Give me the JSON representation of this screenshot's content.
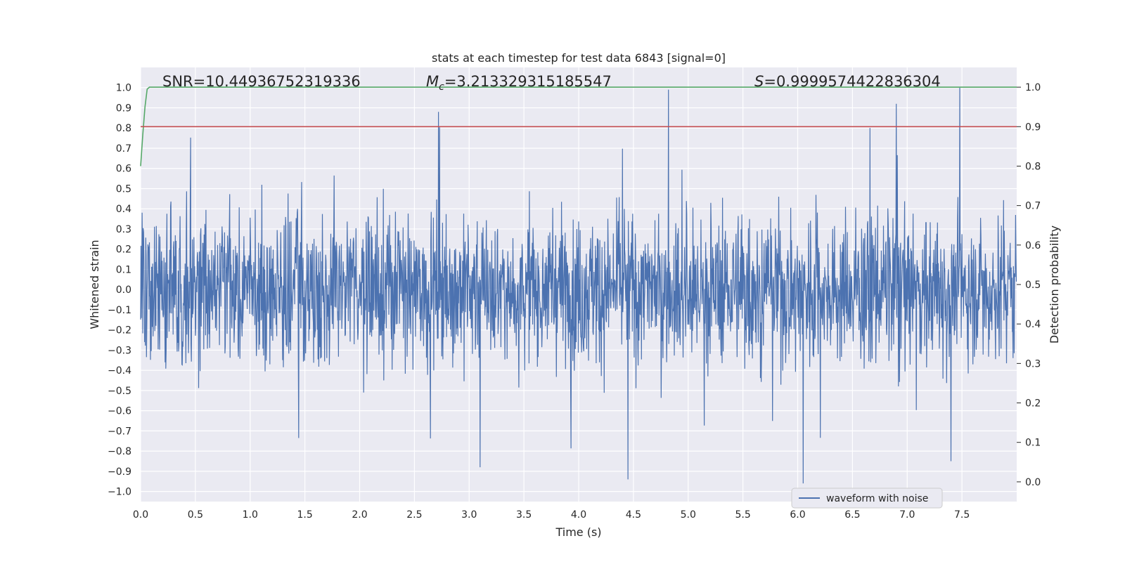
{
  "chart_data": {
    "type": "line",
    "title": "stats at each timestep for test data 6843 [signal=0]",
    "xlabel": "Time (s)",
    "ylabel_left": "Whitened strain",
    "ylabel_right": "Detection probability",
    "xlim": [
      0.0,
      8.0
    ],
    "ylim_left": [
      -1.05,
      1.1
    ],
    "ylim_right": [
      -0.05,
      1.05
    ],
    "x_ticks": [
      "0.0",
      "0.5",
      "1.0",
      "1.5",
      "2.0",
      "2.5",
      "3.0",
      "3.5",
      "4.0",
      "4.5",
      "5.0",
      "5.5",
      "6.0",
      "6.5",
      "7.0",
      "7.5"
    ],
    "y_ticks_left": [
      "1.0",
      "0.9",
      "0.8",
      "0.7",
      "0.6",
      "0.5",
      "0.4",
      "0.3",
      "0.2",
      "0.1",
      "0.0",
      "-0.1",
      "-0.2",
      "-0.3",
      "-0.4",
      "-0.5",
      "-0.6",
      "-0.7",
      "-0.8",
      "-0.9",
      "-1.0"
    ],
    "y_ticks_right": [
      "1.0",
      "0.9",
      "0.8",
      "0.7",
      "0.6",
      "0.5",
      "0.4",
      "0.3",
      "0.2",
      "0.1",
      "0.0"
    ],
    "grid": true,
    "legend_position": "lower-center-right",
    "annotations": {
      "snr_label": "SNR=10.44936752319336",
      "mc_symbol": "M",
      "mc_subscript": "c",
      "mc_value": "=3.213329315185547",
      "s_symbol": "S",
      "s_value": "=0.9999574422836304"
    },
    "series": [
      {
        "name": "waveform with noise",
        "axis": "left",
        "color": "#4c72b0",
        "style": "dense noise, mostly within ±0.4, peaks near ±0.9",
        "notable_peaks": [
          {
            "x": 4.82,
            "y": 0.99
          },
          {
            "x": 7.48,
            "y": 1.0
          },
          {
            "x": 6.9,
            "y": 0.92
          },
          {
            "x": 2.72,
            "y": 0.88
          },
          {
            "x": 4.45,
            "y": -0.94
          },
          {
            "x": 6.05,
            "y": -0.96
          },
          {
            "x": 3.1,
            "y": -0.88
          },
          {
            "x": 7.4,
            "y": -0.85
          }
        ]
      },
      {
        "name": "",
        "axis": "right",
        "color": "#55a868",
        "x": [
          0.0,
          0.02,
          0.04,
          0.06,
          0.08,
          0.12,
          8.0
        ],
        "values": [
          0.8,
          0.88,
          0.95,
          0.995,
          1.0,
          1.0,
          1.0
        ]
      },
      {
        "name": "",
        "axis": "right",
        "color": "#c44e52",
        "x": [
          0.0,
          8.0
        ],
        "values": [
          0.9,
          0.9
        ]
      }
    ]
  }
}
